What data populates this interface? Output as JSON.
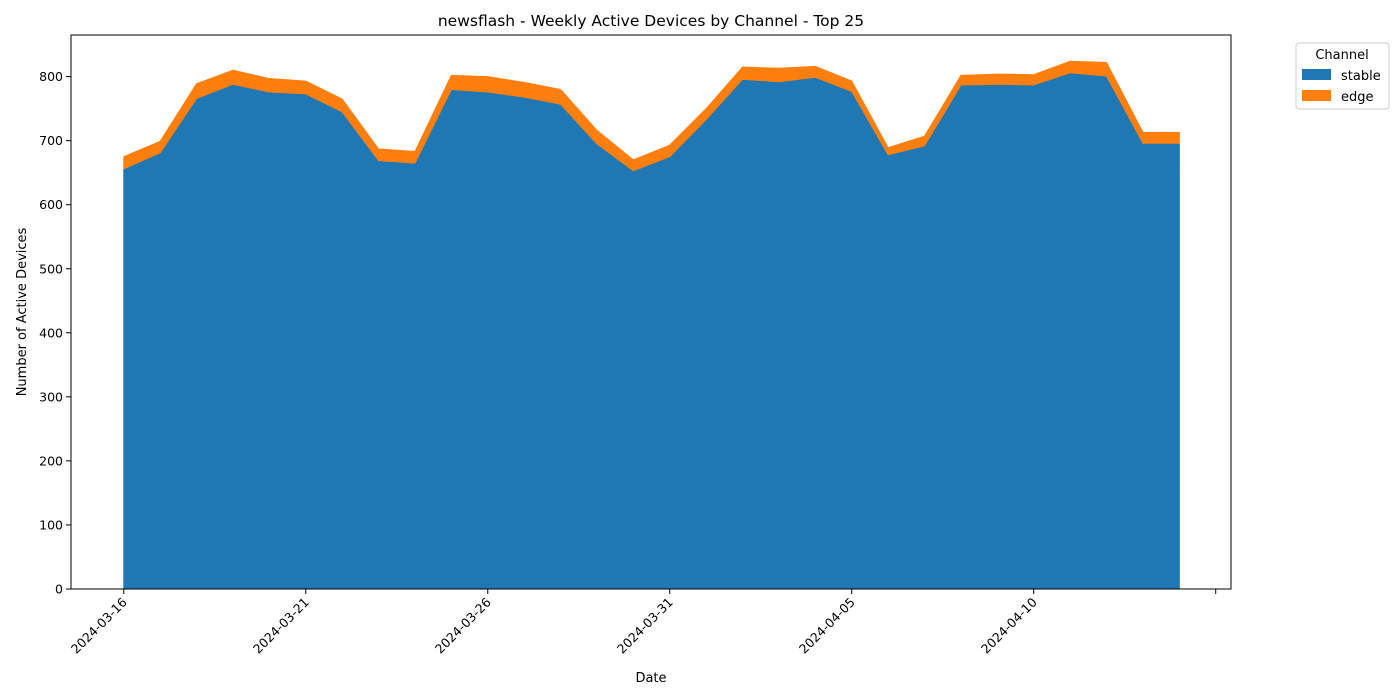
{
  "chart_data": {
    "type": "area",
    "stacked": true,
    "title": "newsflash - Weekly Active Devices by Channel - Top 25",
    "xlabel": "Date",
    "ylabel": "Number of Active Devices",
    "x": [
      "2024-03-16",
      "2024-03-17",
      "2024-03-18",
      "2024-03-19",
      "2024-03-20",
      "2024-03-21",
      "2024-03-22",
      "2024-03-23",
      "2024-03-24",
      "2024-03-25",
      "2024-03-26",
      "2024-03-27",
      "2024-03-28",
      "2024-03-29",
      "2024-03-30",
      "2024-03-31",
      "2024-04-01",
      "2024-04-02",
      "2024-04-03",
      "2024-04-04",
      "2024-04-05",
      "2024-04-06",
      "2024-04-07",
      "2024-04-08",
      "2024-04-09",
      "2024-04-10",
      "2024-04-11",
      "2024-04-12",
      "2024-04-13",
      "2024-04-14"
    ],
    "x_ticks": [
      "2024-03-16",
      "2024-03-21",
      "2024-03-26",
      "2024-03-31",
      "2024-04-05",
      "2024-04-10"
    ],
    "ylim": [
      0,
      865
    ],
    "y_ticks": [
      0,
      100,
      200,
      300,
      400,
      500,
      600,
      700,
      800
    ],
    "series": [
      {
        "name": "stable",
        "color": "#1f77b4",
        "values": [
          656,
          681,
          766,
          788,
          776,
          773,
          745,
          669,
          665,
          780,
          776,
          768,
          757,
          695,
          653,
          675,
          733,
          796,
          792,
          799,
          777,
          678,
          692,
          787,
          788,
          787,
          806,
          801,
          696,
          696
        ]
      },
      {
        "name": "edge",
        "color": "#ff7f0e",
        "values": [
          19,
          18,
          23,
          22,
          21,
          20,
          20,
          18,
          18,
          22,
          24,
          23,
          23,
          21,
          17,
          18,
          17,
          19,
          21,
          17,
          16,
          11,
          15,
          15,
          16,
          16,
          18,
          21,
          17,
          17
        ]
      }
    ],
    "legend": {
      "title": "Channel",
      "position": "upper-right-outside"
    },
    "grid": false
  }
}
